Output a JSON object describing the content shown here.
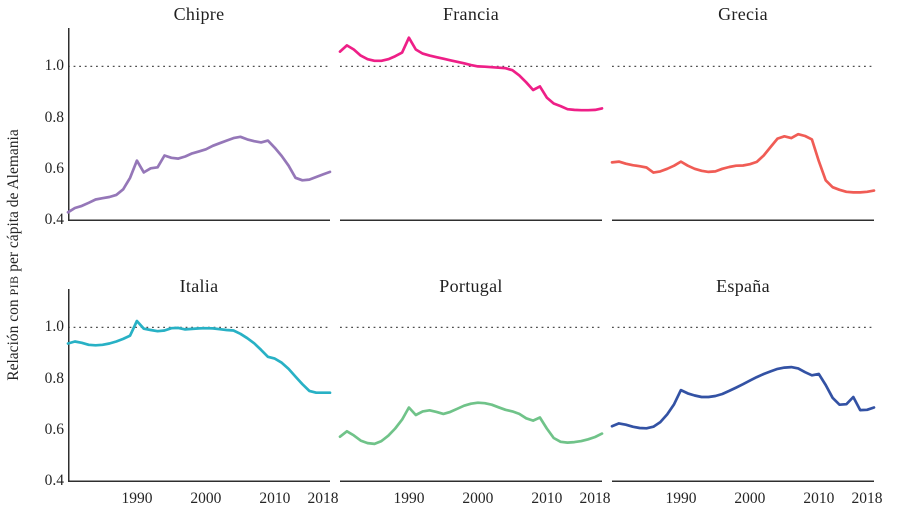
{
  "figure": {
    "ylabel_pre": "Relación con ",
    "ylabel_smallcaps": "PIB",
    "ylabel_post": " per cápita de Alemania"
  },
  "chart_data": {
    "type": "line",
    "layout": "2x3-small-multiples",
    "x_start": 1980,
    "x_end": 2018,
    "ylim": [
      0.4,
      1.15
    ],
    "reference_line": 1.0,
    "grid": false,
    "legend": "none (one colored series per titled panel)",
    "yticks": [
      {
        "label": "1.0",
        "value": 1.0
      },
      {
        "label": "0.8",
        "value": 0.8
      },
      {
        "label": "0.6",
        "value": 0.6
      },
      {
        "label": "0.4",
        "value": 0.4
      }
    ],
    "xticks": [
      1990,
      2000,
      2010,
      2018
    ],
    "colors": {
      "axis": "#2f2f2f",
      "reference": "#4d4d4d",
      "text": "#252525"
    },
    "years": [
      1980,
      1981,
      1982,
      1983,
      1984,
      1985,
      1986,
      1987,
      1988,
      1989,
      1990,
      1991,
      1992,
      1993,
      1994,
      1995,
      1996,
      1997,
      1998,
      1999,
      2000,
      2001,
      2002,
      2003,
      2004,
      2005,
      2006,
      2007,
      2008,
      2009,
      2010,
      2011,
      2012,
      2013,
      2014,
      2015,
      2016,
      2017,
      2018
    ],
    "panels": [
      {
        "id": "chipre",
        "title": "Chipre",
        "color": "#9577b8",
        "values": [
          0.43,
          0.447,
          0.455,
          0.467,
          0.48,
          0.485,
          0.49,
          0.498,
          0.52,
          0.565,
          0.632,
          0.586,
          0.602,
          0.606,
          0.652,
          0.643,
          0.64,
          0.648,
          0.66,
          0.668,
          0.676,
          0.69,
          0.7,
          0.71,
          0.72,
          0.725,
          0.715,
          0.708,
          0.703,
          0.71,
          0.682,
          0.65,
          0.612,
          0.565,
          0.555,
          0.558,
          0.568,
          0.578,
          0.588
        ]
      },
      {
        "id": "francia",
        "title": "Francia",
        "color": "#ee1f87",
        "values": [
          1.058,
          1.082,
          1.066,
          1.042,
          1.028,
          1.022,
          1.022,
          1.028,
          1.04,
          1.054,
          1.112,
          1.066,
          1.05,
          1.042,
          1.036,
          1.03,
          1.024,
          1.018,
          1.012,
          1.005,
          1.0,
          0.999,
          0.997,
          0.995,
          0.993,
          0.985,
          0.965,
          0.938,
          0.908,
          0.922,
          0.878,
          0.855,
          0.845,
          0.833,
          0.83,
          0.829,
          0.829,
          0.83,
          0.836
        ]
      },
      {
        "id": "grecia",
        "title": "Grecia",
        "color": "#f05c55",
        "values": [
          0.625,
          0.628,
          0.62,
          0.614,
          0.61,
          0.605,
          0.585,
          0.59,
          0.6,
          0.612,
          0.628,
          0.612,
          0.6,
          0.592,
          0.588,
          0.59,
          0.6,
          0.607,
          0.612,
          0.613,
          0.618,
          0.627,
          0.652,
          0.685,
          0.718,
          0.727,
          0.72,
          0.735,
          0.728,
          0.715,
          0.63,
          0.555,
          0.528,
          0.518,
          0.51,
          0.508,
          0.508,
          0.51,
          0.515
        ]
      },
      {
        "id": "italia",
        "title": "Italia",
        "color": "#28b1c5",
        "values": [
          0.937,
          0.945,
          0.94,
          0.932,
          0.93,
          0.932,
          0.937,
          0.945,
          0.955,
          0.968,
          1.025,
          0.995,
          0.99,
          0.985,
          0.988,
          0.997,
          0.998,
          0.992,
          0.994,
          0.996,
          0.997,
          0.996,
          0.993,
          0.99,
          0.988,
          0.975,
          0.958,
          0.938,
          0.912,
          0.885,
          0.878,
          0.862,
          0.838,
          0.808,
          0.778,
          0.752,
          0.745,
          0.745,
          0.745
        ]
      },
      {
        "id": "portugal",
        "title": "Portugal",
        "color": "#70c389",
        "values": [
          0.573,
          0.594,
          0.578,
          0.558,
          0.548,
          0.545,
          0.556,
          0.577,
          0.605,
          0.64,
          0.687,
          0.658,
          0.672,
          0.676,
          0.67,
          0.662,
          0.67,
          0.682,
          0.694,
          0.702,
          0.706,
          0.704,
          0.698,
          0.688,
          0.678,
          0.672,
          0.662,
          0.645,
          0.636,
          0.648,
          0.605,
          0.568,
          0.553,
          0.55,
          0.552,
          0.556,
          0.563,
          0.572,
          0.585
        ]
      },
      {
        "id": "espana",
        "title": "España",
        "color": "#3352a4",
        "values": [
          0.614,
          0.625,
          0.62,
          0.612,
          0.607,
          0.606,
          0.612,
          0.63,
          0.66,
          0.7,
          0.755,
          0.742,
          0.734,
          0.728,
          0.728,
          0.732,
          0.74,
          0.752,
          0.765,
          0.778,
          0.792,
          0.806,
          0.818,
          0.828,
          0.838,
          0.843,
          0.845,
          0.84,
          0.825,
          0.813,
          0.818,
          0.775,
          0.725,
          0.698,
          0.7,
          0.728,
          0.677,
          0.678,
          0.687
        ]
      }
    ]
  }
}
